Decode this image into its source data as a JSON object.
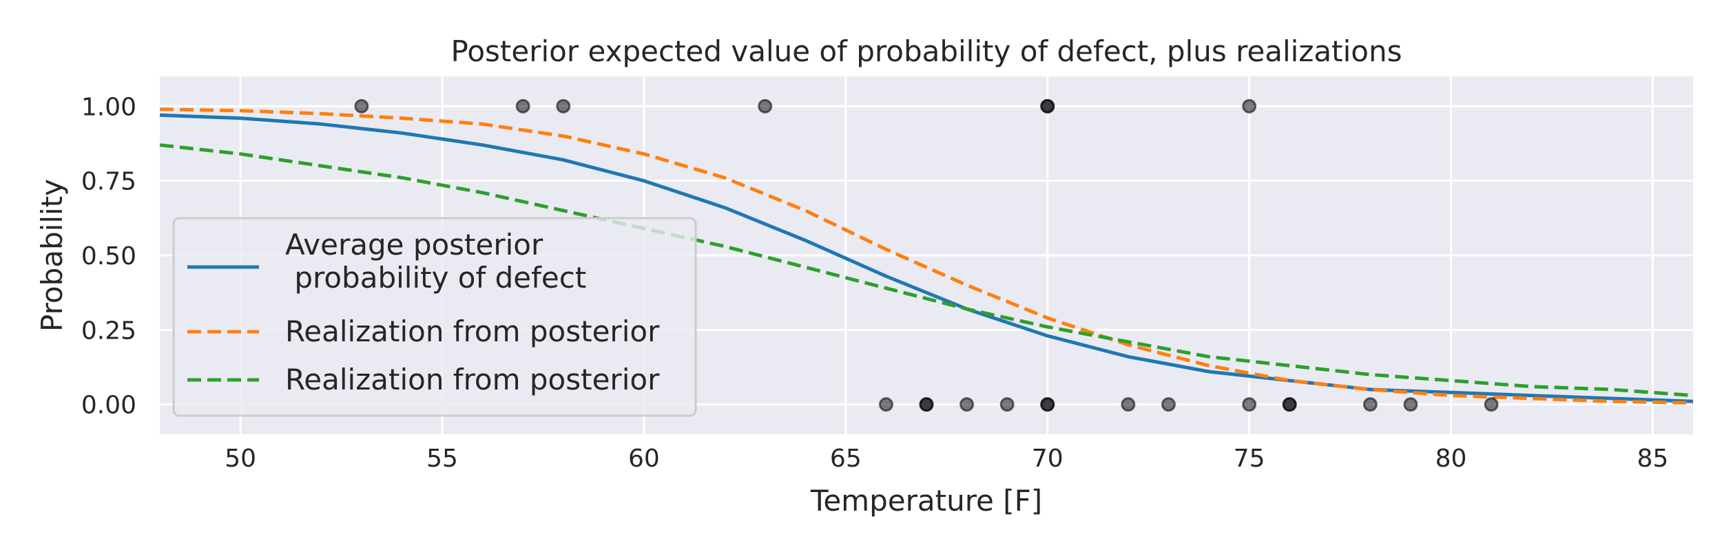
{
  "chart_data": {
    "type": "line",
    "title": "Posterior expected value of probability of defect, plus realizations",
    "xlabel": "Temperature [F]",
    "ylabel": "Probability",
    "xlim": [
      48,
      86
    ],
    "ylim": [
      -0.1,
      1.1
    ],
    "x_ticks": [
      50,
      55,
      60,
      65,
      70,
      75,
      80,
      85
    ],
    "y_ticks": [
      0.0,
      0.25,
      0.5,
      0.75,
      1.0
    ],
    "x_tick_labels": [
      "50",
      "55",
      "60",
      "65",
      "70",
      "75",
      "80",
      "85"
    ],
    "y_tick_labels": [
      "0.00",
      "0.25",
      "0.50",
      "0.75",
      "1.00"
    ],
    "grid": true,
    "legend_position": "center-left",
    "series": [
      {
        "name": "Average posterior\n    probability of defect",
        "style": "solid",
        "color": "#1f77b4",
        "x": [
          48,
          50,
          52,
          54,
          56,
          58,
          60,
          62,
          64,
          65,
          66,
          68,
          70,
          72,
          74,
          76,
          78,
          80,
          82,
          84,
          86
        ],
        "y": [
          0.97,
          0.96,
          0.94,
          0.91,
          0.87,
          0.82,
          0.75,
          0.66,
          0.55,
          0.49,
          0.43,
          0.32,
          0.23,
          0.16,
          0.11,
          0.08,
          0.05,
          0.04,
          0.03,
          0.02,
          0.01
        ]
      },
      {
        "name": "Realization from posterior",
        "style": "dashed",
        "color": "#ff7f0e",
        "x": [
          48,
          50,
          52,
          54,
          56,
          58,
          60,
          62,
          64,
          66,
          68,
          70,
          72,
          74,
          76,
          78,
          80,
          82,
          84,
          86
        ],
        "y": [
          0.99,
          0.985,
          0.975,
          0.96,
          0.94,
          0.9,
          0.84,
          0.76,
          0.65,
          0.52,
          0.4,
          0.29,
          0.2,
          0.13,
          0.08,
          0.05,
          0.03,
          0.02,
          0.01,
          0.005
        ]
      },
      {
        "name": "Realization from posterior",
        "style": "dashed",
        "color": "#2ca02c",
        "x": [
          48,
          50,
          52,
          54,
          56,
          58,
          60,
          62,
          64,
          66,
          68,
          70,
          72,
          74,
          76,
          78,
          80,
          82,
          84,
          86
        ],
        "y": [
          0.87,
          0.84,
          0.8,
          0.76,
          0.71,
          0.65,
          0.59,
          0.53,
          0.46,
          0.39,
          0.32,
          0.26,
          0.21,
          0.16,
          0.13,
          0.1,
          0.08,
          0.06,
          0.05,
          0.03
        ]
      }
    ],
    "observations": {
      "color": "#000000",
      "x": [
        53,
        57,
        58,
        63,
        70,
        70,
        75,
        66,
        67,
        67,
        68,
        69,
        70,
        70,
        72,
        73,
        75,
        76,
        76,
        78,
        79,
        81
      ],
      "y": [
        1,
        1,
        1,
        1,
        1,
        1,
        1,
        0,
        0,
        0,
        0,
        0,
        0,
        0,
        0,
        0,
        0,
        0,
        0,
        0,
        0,
        0
      ]
    }
  }
}
